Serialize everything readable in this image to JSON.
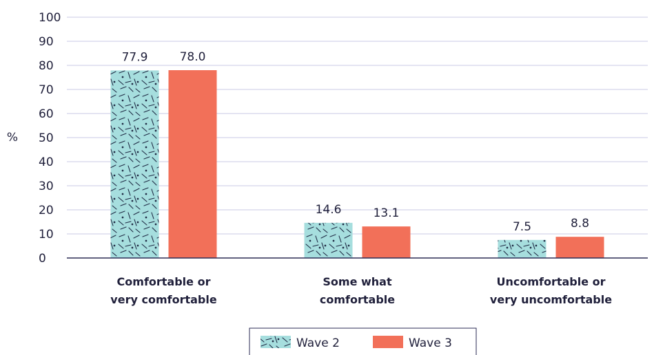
{
  "chart_data": {
    "type": "bar",
    "title": "",
    "xlabel": "",
    "ylabel": "%",
    "ylim": [
      0,
      100
    ],
    "yticks": [
      0,
      10,
      20,
      30,
      40,
      50,
      60,
      70,
      80,
      90,
      100
    ],
    "grid": true,
    "legend_position": "bottom",
    "categories": [
      [
        "Comfortable or",
        "very comfortable"
      ],
      [
        "Some what",
        "comfortable"
      ],
      [
        "Uncomfortable or",
        "very uncomfortable"
      ]
    ],
    "series": [
      {
        "name": "Wave 2",
        "values": [
          77.9,
          14.6,
          7.5
        ],
        "value_labels": [
          "77.9",
          "14.6",
          "7.5"
        ],
        "color": "#a6dede",
        "pattern": "dashed-hatch"
      },
      {
        "name": "Wave 3",
        "values": [
          78.0,
          13.1,
          8.8
        ],
        "value_labels": [
          "78.0",
          "13.1",
          "8.8"
        ],
        "color": "#f27059",
        "pattern": "solid"
      }
    ],
    "colors": {
      "grid": "#c9c9e6",
      "axis": "#2b2b55",
      "text": "#1f1f3a"
    }
  }
}
